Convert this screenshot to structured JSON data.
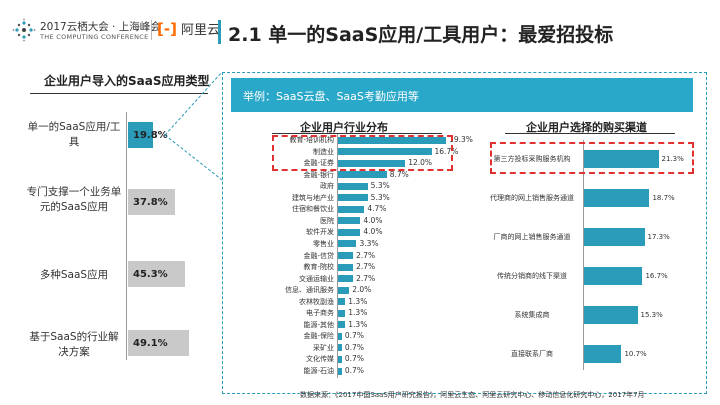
{
  "header": {
    "conference_name": "2017云栖大会 · 上海峰会",
    "conference_subtitle": "THE COMPUTING CONFERENCE",
    "aliyun_mark": "[-]",
    "aliyun_name": "阿里云",
    "page_title": "2.1 单一的SaaS应用/工具用户：最爱招投标"
  },
  "left_chart_title": "企业用户导入的SaaS应用类型",
  "banner_text": "举例：SaaS云盘、SaaS考勤应用等",
  "industry_chart_title": "企业用户行业分布",
  "channel_chart_title": "企业用户选择的购买渠道",
  "source_text": "数据来源：《2017中国SaaS用户研究报告》，阿里云生态、阿里云研究中心、移动信息化研究中心，2017年7月",
  "colors": {
    "accent": "#2a9bb8",
    "banner": "#2aa8c9",
    "gray_bar": "#c9c9c9",
    "highlight": "#e03030"
  },
  "chart_data": [
    {
      "type": "bar",
      "orientation": "horizontal",
      "title": "企业用户导入的SaaS应用类型",
      "categories": [
        "单一的SaaS应用/工具",
        "专门支撑一个业务单元的SaaS应用",
        "多种SaaS应用",
        "基于SaaS的行业解决方案"
      ],
      "category_lines": [
        [
          "单一的SaaS应用/工",
          "具"
        ],
        [
          "专门支撑一个业务单",
          "元的SaaS应用"
        ],
        [
          "多种SaaS应用"
        ],
        [
          "基于SaaS的行业解",
          "决方案"
        ]
      ],
      "values": [
        19.8,
        37.8,
        45.3,
        49.1
      ],
      "labels": [
        "19.8%",
        "37.8%",
        "45.3%",
        "49.1%"
      ],
      "highlight_index": 0
    },
    {
      "type": "bar",
      "orientation": "horizontal",
      "title": "企业用户行业分布",
      "categories": [
        "教育-培训机构",
        "制造业",
        "金融-证券",
        "金融-银行",
        "政府",
        "建筑与地产业",
        "住宿和餐饮业",
        "医院",
        "软件开发",
        "零售业",
        "金融-信贷",
        "教育-院校",
        "交通运输业",
        "信息、通讯服务",
        "农林牧副渔",
        "电子商务",
        "能源-其他",
        "金融-保险",
        "采矿业",
        "文化传媒",
        "能源-石油"
      ],
      "values": [
        19.3,
        16.7,
        12.0,
        8.7,
        5.3,
        5.3,
        4.7,
        4.0,
        4.0,
        3.3,
        2.7,
        2.7,
        2.7,
        2.0,
        1.3,
        1.3,
        1.3,
        0.7,
        0.7,
        0.7,
        0.7
      ],
      "labels": [
        "19.3%",
        "16.7%",
        "12.0%",
        "8.7%",
        "5.3%",
        "5.3%",
        "4.7%",
        "4.0%",
        "4.0%",
        "3.3%",
        "2.7%",
        "2.7%",
        "2.7%",
        "2.0%",
        "1.3%",
        "1.3%",
        "1.3%",
        "0.7%",
        "0.7%",
        "0.7%",
        "0.7%"
      ],
      "highlight_range": [
        0,
        2
      ]
    },
    {
      "type": "bar",
      "orientation": "horizontal",
      "title": "企业用户选择的购买渠道",
      "categories": [
        "第三方投标采购服务机构",
        "代理商的网上销售服务通道",
        "厂商的网上销售服务通道",
        "传统分销商的线下渠道",
        "系统集成商",
        "直接联系厂商"
      ],
      "values": [
        21.3,
        18.7,
        17.3,
        16.7,
        15.3,
        10.7
      ],
      "labels": [
        "21.3%",
        "18.7%",
        "17.3%",
        "16.7%",
        "15.3%",
        "10.7%"
      ],
      "highlight_index": 0
    }
  ]
}
